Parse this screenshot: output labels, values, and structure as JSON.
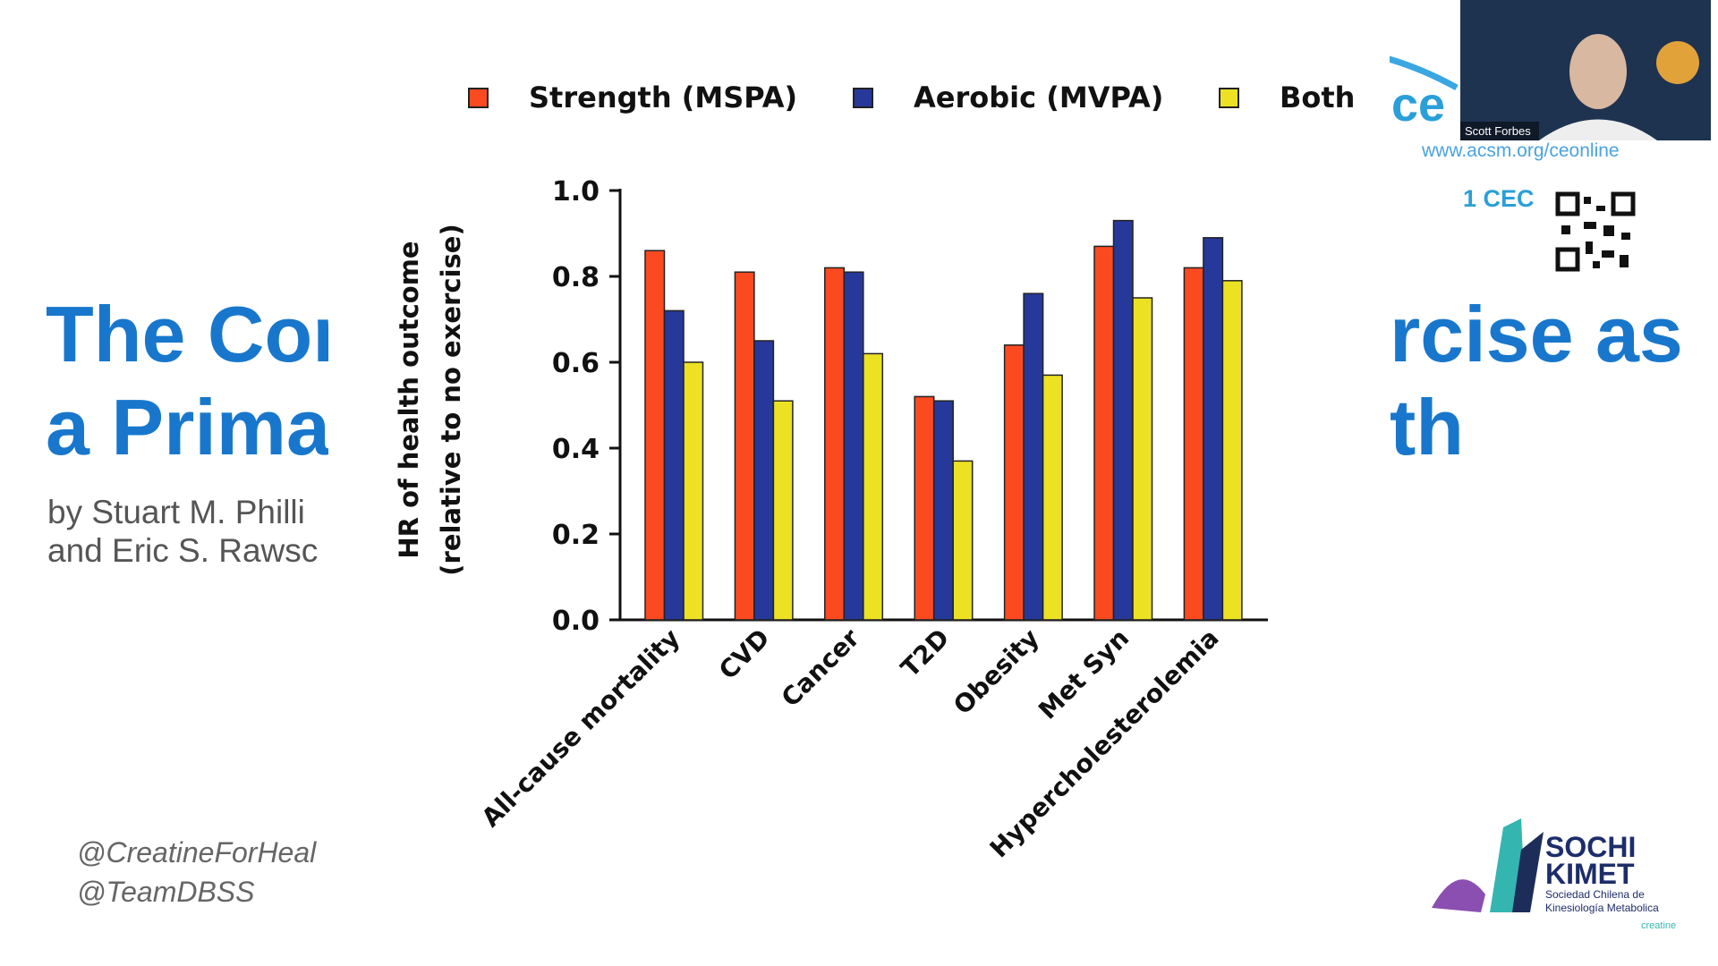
{
  "chart_data": {
    "type": "bar",
    "y_label": [
      "HR of health outcome",
      "(relative to no exercise)"
    ],
    "categories": [
      "All-cause mortality",
      "CVD",
      "Cancer",
      "T2D",
      "Obesity",
      "Met Syn",
      "Hypercholesterolemia"
    ],
    "series": [
      {
        "name": "Strength (MSPA)",
        "color": "#fb4a20",
        "values": [
          0.86,
          0.81,
          0.82,
          0.52,
          0.64,
          0.87,
          0.82
        ]
      },
      {
        "name": "Aerobic (MVPA)",
        "color": "#26399a",
        "values": [
          0.72,
          0.65,
          0.81,
          0.51,
          0.76,
          0.93,
          0.89
        ]
      },
      {
        "name": "Both",
        "color": "#ece123",
        "values": [
          0.6,
          0.51,
          0.62,
          0.37,
          0.57,
          0.75,
          0.79
        ]
      }
    ],
    "ylim": [
      0,
      1
    ],
    "yticks": [
      {
        "value": 0,
        "label": "0.0"
      },
      0.2,
      0.4,
      0.6,
      0.8,
      {
        "value": 1,
        "label": "1.0"
      }
    ],
    "grid": false,
    "legend": "top"
  },
  "slide": {
    "title_left": [
      "The Con",
      "a Prima"
    ],
    "title_right": [
      "rcise as",
      "th"
    ],
    "authors": [
      "by Stuart M. Philli",
      "and Eric S. Rawsc"
    ],
    "handles": [
      "@CreatineForHeal",
      "@TeamDBSS"
    ],
    "banner": "ce",
    "url": "www.acsm.org/ceonline",
    "credit": "1 CEC",
    "speaker": "Scott Forbes",
    "logo": [
      "SOCHI",
      "KIMET",
      "Sociedad Chilena de",
      "Kinesiología Metabolica"
    ],
    "sponsor": "creatine"
  }
}
